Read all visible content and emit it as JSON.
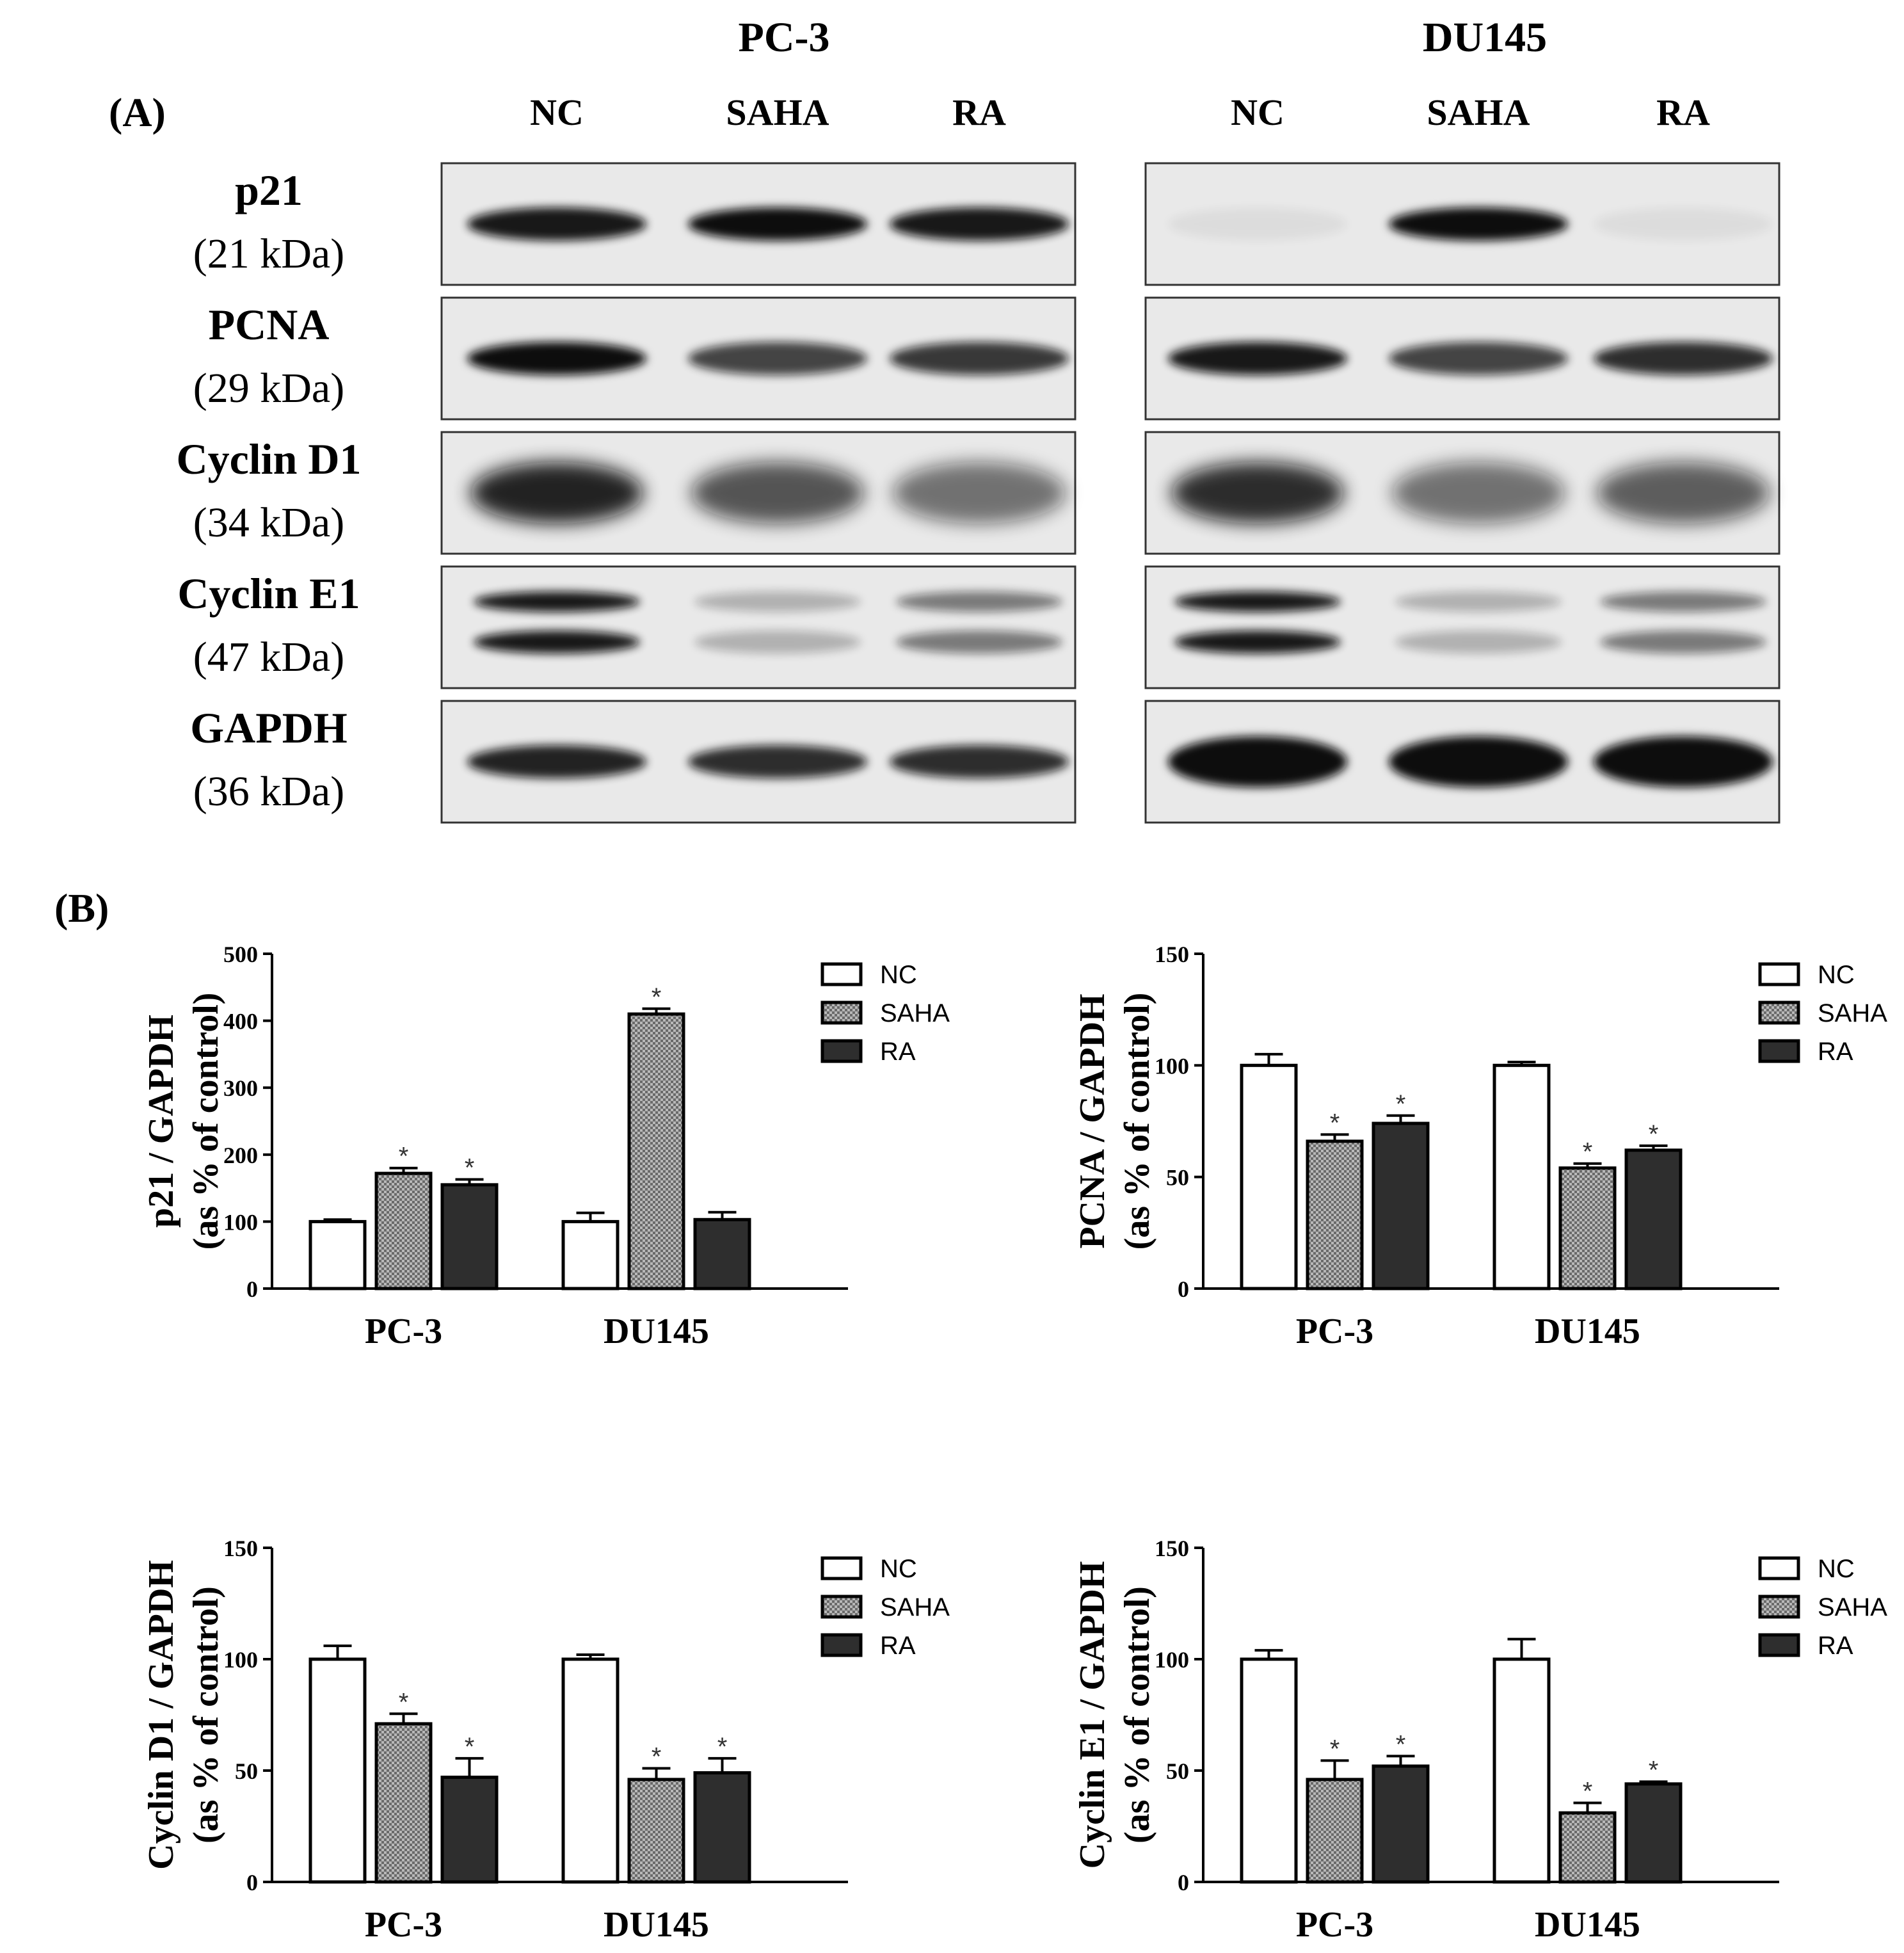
{
  "panel_labels": {
    "a": "(A)",
    "b": "(B)"
  },
  "blot": {
    "cell_lines": [
      "PC-3",
      "DU145"
    ],
    "lanes": [
      "NC",
      "SAHA",
      "RA"
    ],
    "proteins": [
      {
        "name": "p21",
        "mw": "(21 kDa)"
      },
      {
        "name": "PCNA",
        "mw": "(29 kDa)"
      },
      {
        "name": "Cyclin D1",
        "mw": "(34 kDa)"
      },
      {
        "name": "Cyclin E1",
        "mw": "(47 kDa)"
      },
      {
        "name": "GAPDH",
        "mw": "(36 kDa)"
      }
    ],
    "band_intensity": {
      "PC-3": [
        [
          0.95,
          1.0,
          0.95
        ],
        [
          1.0,
          0.75,
          0.8
        ],
        [
          1.0,
          0.75,
          0.6
        ],
        [
          0.95,
          0.25,
          0.5
        ],
        [
          0.9,
          0.85,
          0.85
        ]
      ],
      "DU145": [
        [
          0.05,
          1.0,
          0.05
        ],
        [
          0.95,
          0.75,
          0.85
        ],
        [
          0.95,
          0.6,
          0.7
        ],
        [
          0.95,
          0.25,
          0.5
        ],
        [
          1.0,
          1.0,
          1.0
        ]
      ]
    }
  },
  "legend": [
    "NC",
    "SAHA",
    "RA"
  ],
  "series_colors": {
    "NC": "#ffffff",
    "SAHA": "#9a9a9a",
    "RA": "#2e2e2e"
  },
  "chart_data": [
    {
      "type": "bar",
      "categories": [
        "PC-3",
        "DU145"
      ],
      "ylabel_line1": "p21 / GAPDH",
      "ylabel_line2": "(as % of control)",
      "ylim": [
        0,
        500
      ],
      "yticks": [
        "0",
        "100",
        "200",
        "300",
        "400",
        "500"
      ],
      "series": [
        {
          "name": "NC",
          "values": [
            100,
            100
          ],
          "errors": [
            3,
            13
          ],
          "sig": [
            "",
            ""
          ]
        },
        {
          "name": "SAHA",
          "values": [
            172,
            410
          ],
          "errors": [
            8,
            8
          ],
          "sig": [
            "*",
            "*"
          ]
        },
        {
          "name": "RA",
          "values": [
            155,
            103
          ],
          "errors": [
            8,
            11
          ],
          "sig": [
            "*",
            ""
          ]
        }
      ]
    },
    {
      "type": "bar",
      "categories": [
        "PC-3",
        "DU145"
      ],
      "ylabel_line1": "PCNA / GAPDH",
      "ylabel_line2": "(as % of control)",
      "ylim": [
        0,
        150
      ],
      "yticks": [
        "0",
        "50",
        "100",
        "150"
      ],
      "series": [
        {
          "name": "NC",
          "values": [
            100,
            100
          ],
          "errors": [
            5,
            1.5
          ],
          "sig": [
            "",
            ""
          ]
        },
        {
          "name": "SAHA",
          "values": [
            66,
            54
          ],
          "errors": [
            3,
            2
          ],
          "sig": [
            "*",
            "*"
          ]
        },
        {
          "name": "RA",
          "values": [
            74,
            62
          ],
          "errors": [
            3.5,
            2
          ],
          "sig": [
            "*",
            "*"
          ]
        }
      ]
    },
    {
      "type": "bar",
      "categories": [
        "PC-3",
        "DU145"
      ],
      "ylabel_line1": "Cyclin D1 / GAPDH",
      "ylabel_line2": "(as % of control)",
      "ylim": [
        0,
        150
      ],
      "yticks": [
        "0",
        "50",
        "100",
        "150"
      ],
      "series": [
        {
          "name": "NC",
          "values": [
            100,
            100
          ],
          "errors": [
            6,
            2
          ],
          "sig": [
            "",
            ""
          ]
        },
        {
          "name": "SAHA",
          "values": [
            71,
            46
          ],
          "errors": [
            4.5,
            5
          ],
          "sig": [
            "*",
            "*"
          ]
        },
        {
          "name": "RA",
          "values": [
            47,
            49
          ],
          "errors": [
            8.5,
            6.5
          ],
          "sig": [
            "*",
            "*"
          ]
        }
      ]
    },
    {
      "type": "bar",
      "categories": [
        "PC-3",
        "DU145"
      ],
      "ylabel_line1": "Cyclin E1 / GAPDH",
      "ylabel_line2": "(as % of control)",
      "ylim": [
        0,
        150
      ],
      "yticks": [
        "0",
        "50",
        "100",
        "150"
      ],
      "series": [
        {
          "name": "NC",
          "values": [
            100,
            100
          ],
          "errors": [
            4,
            9
          ],
          "sig": [
            "",
            ""
          ]
        },
        {
          "name": "SAHA",
          "values": [
            46,
            31
          ],
          "errors": [
            8.5,
            4.5
          ],
          "sig": [
            "*",
            "*"
          ]
        },
        {
          "name": "RA",
          "values": [
            52,
            44
          ],
          "errors": [
            4.5,
            1
          ],
          "sig": [
            "*",
            "*"
          ]
        }
      ]
    }
  ]
}
